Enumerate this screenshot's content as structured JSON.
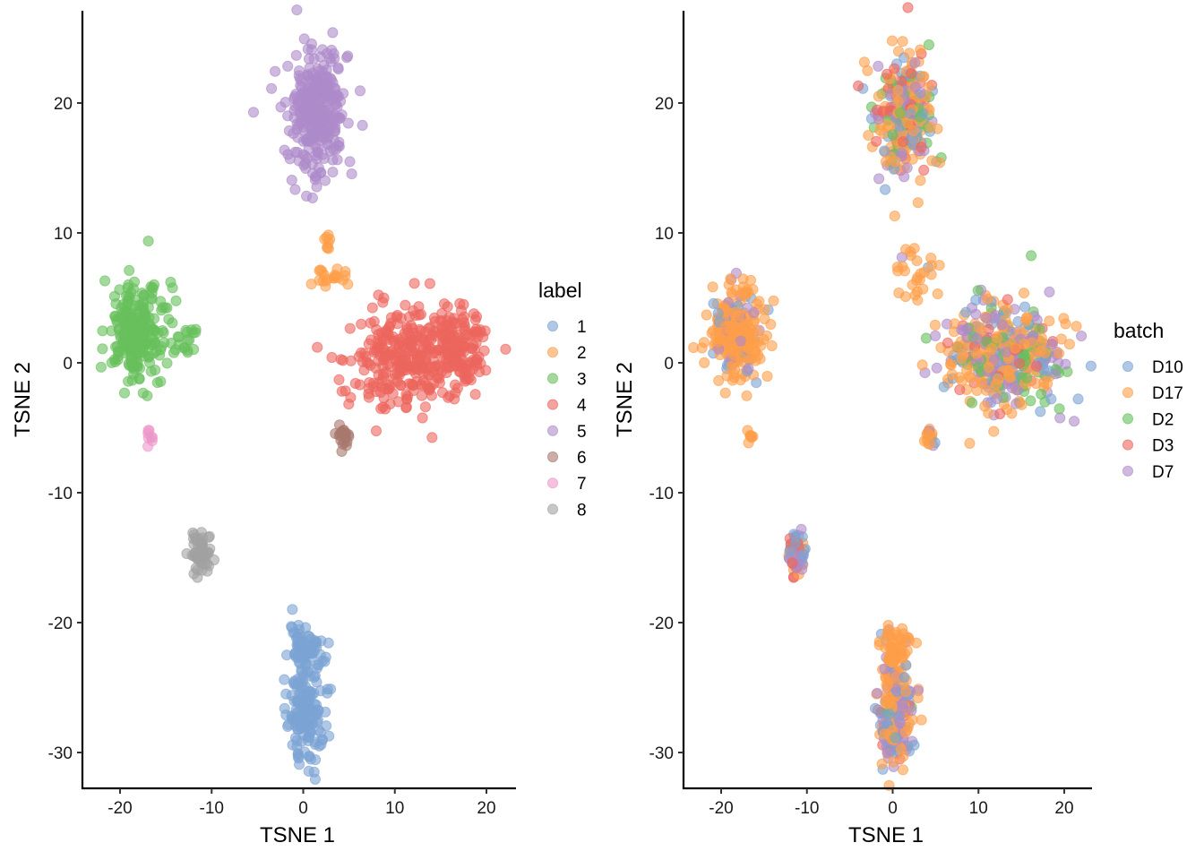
{
  "chart_data": [
    {
      "type": "scatter",
      "title": "",
      "xlabel": "TSNE 1",
      "ylabel": "TSNE 2",
      "xlim": [
        -24,
        23
      ],
      "ylim": [
        -32.5,
        27
      ],
      "xticks": [
        -20,
        -10,
        0,
        10,
        20
      ],
      "yticks": [
        -30,
        -20,
        -10,
        0,
        10,
        20
      ],
      "xtick_labels": [
        "-20",
        "-10",
        "0",
        "10",
        "20"
      ],
      "ytick_labels": [
        "-30",
        "-20",
        "-10",
        "0",
        "10",
        "20"
      ],
      "grid": false,
      "legend": {
        "title": "label",
        "placement": "right",
        "entries": [
          {
            "name": "1",
            "color": "#7BA3D4"
          },
          {
            "name": "2",
            "color": "#FF9E4A"
          },
          {
            "name": "3",
            "color": "#67BF5C"
          },
          {
            "name": "4",
            "color": "#ED665D"
          },
          {
            "name": "5",
            "color": "#AD8BC9"
          },
          {
            "name": "6",
            "color": "#A8786E"
          },
          {
            "name": "7",
            "color": "#ED97CA"
          },
          {
            "name": "8",
            "color": "#A2A2A2"
          }
        ]
      },
      "clusters": [
        {
          "group": "1",
          "n": 170,
          "cx": 0.3,
          "cy": -26.5,
          "sx": 1.0,
          "sy": 2.3
        },
        {
          "group": "1",
          "n": 50,
          "cx": 0.2,
          "cy": -21.8,
          "sx": 0.9,
          "sy": 0.8
        },
        {
          "group": "2",
          "n": 20,
          "cx": 2.8,
          "cy": 6.4,
          "sx": 1.3,
          "sy": 0.4
        },
        {
          "group": "2",
          "n": 8,
          "cx": 2.6,
          "cy": 9.3,
          "sx": 0.2,
          "sy": 0.4
        },
        {
          "group": "3",
          "n": 240,
          "cx": -18.2,
          "cy": 2.3,
          "sx": 1.6,
          "sy": 1.7
        },
        {
          "group": "3",
          "n": 15,
          "cx": -12.6,
          "cy": 1.7,
          "sx": 0.6,
          "sy": 0.6
        },
        {
          "group": "4",
          "n": 300,
          "cx": 11.5,
          "cy": 0.5,
          "sx": 3.5,
          "sy": 1.9
        },
        {
          "group": "4",
          "n": 120,
          "cx": 17.0,
          "cy": 1.0,
          "sx": 1.7,
          "sy": 1.5
        },
        {
          "group": "5",
          "n": 300,
          "cx": 1.4,
          "cy": 19.2,
          "sx": 1.6,
          "sy": 2.4
        },
        {
          "group": "6",
          "n": 20,
          "cx": 4.3,
          "cy": -5.8,
          "sx": 0.3,
          "sy": 0.5
        },
        {
          "group": "7",
          "n": 8,
          "cx": -16.6,
          "cy": -5.8,
          "sx": 0.2,
          "sy": 0.4
        },
        {
          "group": "8",
          "n": 60,
          "cx": -11.3,
          "cy": -14.6,
          "sx": 0.6,
          "sy": 0.8
        }
      ]
    },
    {
      "type": "scatter",
      "title": "",
      "xlabel": "TSNE 1",
      "ylabel": "TSNE 2",
      "xlim": [
        -24.5,
        23
      ],
      "ylim": [
        -32.5,
        27
      ],
      "xticks": [
        -20,
        -10,
        0,
        10,
        20
      ],
      "yticks": [
        -30,
        -20,
        -10,
        0,
        10,
        20
      ],
      "xtick_labels": [
        "-20",
        "-10",
        "0",
        "10",
        "20"
      ],
      "ytick_labels": [
        "-30",
        "-20",
        "-10",
        "0",
        "10",
        "20"
      ],
      "grid": false,
      "legend": {
        "title": "batch",
        "placement": "right",
        "entries": [
          {
            "name": "D10",
            "color": "#7BA3D4"
          },
          {
            "name": "D17",
            "color": "#FF9E4A"
          },
          {
            "name": "D2",
            "color": "#67BF5C"
          },
          {
            "name": "D3",
            "color": "#ED665D"
          },
          {
            "name": "D7",
            "color": "#AD8BC9"
          }
        ]
      },
      "clusters": [
        {
          "n": 220,
          "cx": 0.3,
          "cy": -26.5,
          "sx": 1.0,
          "sy": 2.3,
          "mix": {
            "D17": 0.55,
            "D7": 0.25,
            "D10": 0.15,
            "D3": 0.03,
            "D2": 0.02
          }
        },
        {
          "n": 50,
          "cx": 0.2,
          "cy": -21.8,
          "sx": 0.9,
          "sy": 0.8,
          "mix": {
            "D17": 0.95,
            "D7": 0.05
          }
        },
        {
          "n": 28,
          "cx": 2.8,
          "cy": 7.0,
          "sx": 1.3,
          "sy": 1.2,
          "mix": {
            "D17": 0.85,
            "D10": 0.05,
            "D2": 0.05,
            "D7": 0.05
          }
        },
        {
          "n": 255,
          "cx": -18.2,
          "cy": 2.3,
          "sx": 1.6,
          "sy": 1.7,
          "mix": {
            "D17": 0.78,
            "D10": 0.12,
            "D7": 0.1
          }
        },
        {
          "n": 420,
          "cx": 13.0,
          "cy": 0.6,
          "sx": 3.6,
          "sy": 2.0,
          "mix": {
            "D17": 0.42,
            "D7": 0.25,
            "D2": 0.15,
            "D10": 0.12,
            "D3": 0.06
          }
        },
        {
          "n": 300,
          "cx": 1.4,
          "cy": 19.2,
          "sx": 1.6,
          "sy": 2.4,
          "mix": {
            "D17": 0.42,
            "D10": 0.18,
            "D3": 0.18,
            "D2": 0.12,
            "D7": 0.1
          }
        },
        {
          "n": 20,
          "cx": 4.3,
          "cy": -5.8,
          "sx": 0.3,
          "sy": 0.5,
          "mix": {
            "D17": 0.75,
            "D10": 0.15,
            "D7": 0.1
          }
        },
        {
          "n": 8,
          "cx": -16.6,
          "cy": -5.8,
          "sx": 0.2,
          "sy": 0.4,
          "mix": {
            "D17": 0.75,
            "D10": 0.25
          }
        },
        {
          "n": 60,
          "cx": -11.3,
          "cy": -14.6,
          "sx": 0.6,
          "sy": 0.8,
          "mix": {
            "D10": 0.35,
            "D17": 0.25,
            "D7": 0.25,
            "D3": 0.15
          }
        }
      ]
    }
  ]
}
